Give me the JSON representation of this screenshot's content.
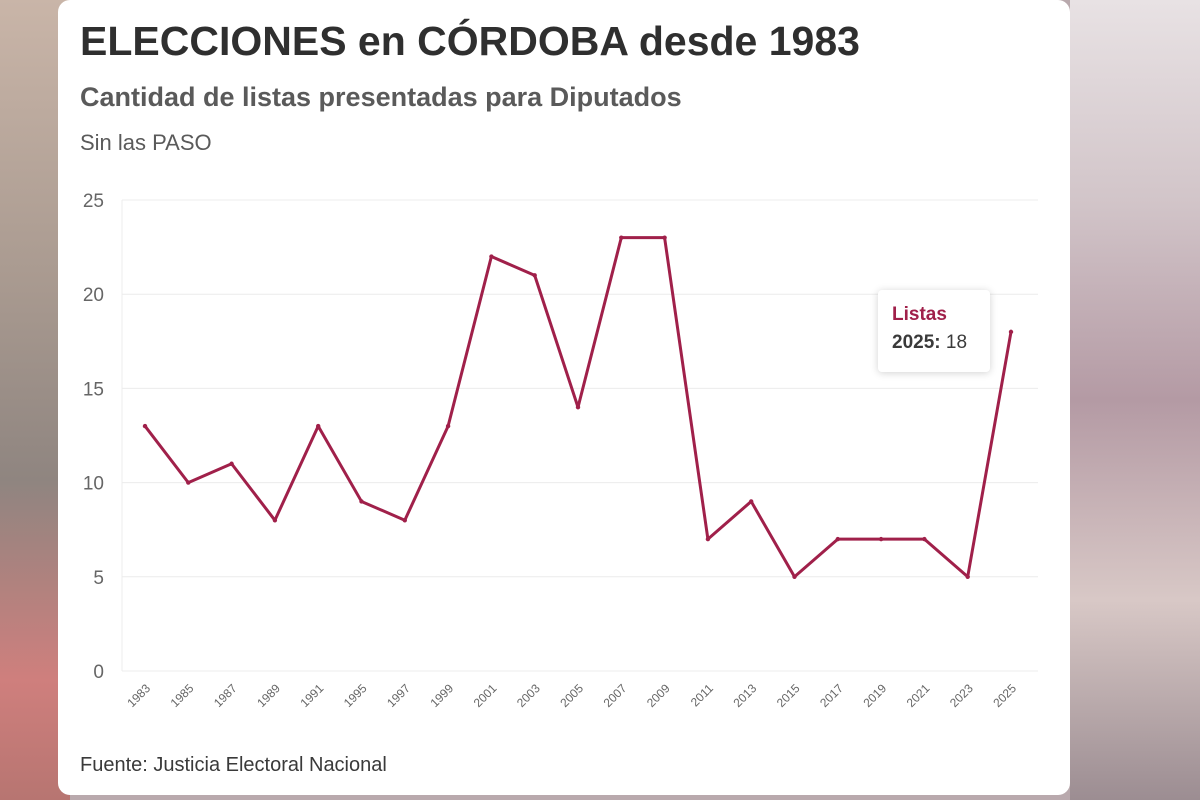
{
  "chart_data": {
    "type": "line",
    "title": "ELECCIONES en CÓRDOBA desde 1983",
    "subtitle": "Cantidad de listas presentadas para Diputados",
    "note": "Sin las PASO",
    "source": "Fuente: Justicia Electoral Nacional",
    "xlabel": "",
    "ylabel": "",
    "ylim": [
      0,
      25
    ],
    "yticks": [
      "0",
      "5",
      "10",
      "15",
      "20",
      "25"
    ],
    "categories": [
      "1983",
      "1985",
      "1987",
      "1989",
      "1991",
      "1995",
      "1997",
      "1999",
      "2001",
      "2003",
      "2005",
      "2007",
      "2009",
      "2011",
      "2013",
      "2015",
      "2017",
      "2019",
      "2021",
      "2023",
      "2025"
    ],
    "series": [
      {
        "name": "Listas",
        "color": "#a0204a",
        "values": [
          13,
          10,
          11,
          8,
          13,
          9,
          8,
          13,
          22,
          21,
          14,
          23,
          23,
          7,
          9,
          5,
          7,
          7,
          7,
          5,
          18
        ]
      }
    ],
    "grid": true,
    "tooltip": {
      "series_name": "Listas",
      "category": "2025",
      "year_label": "2025:",
      "value": "18"
    }
  },
  "colors": {
    "line": "#a0204a",
    "grid": "#ececec",
    "axis_text": "#666666"
  }
}
